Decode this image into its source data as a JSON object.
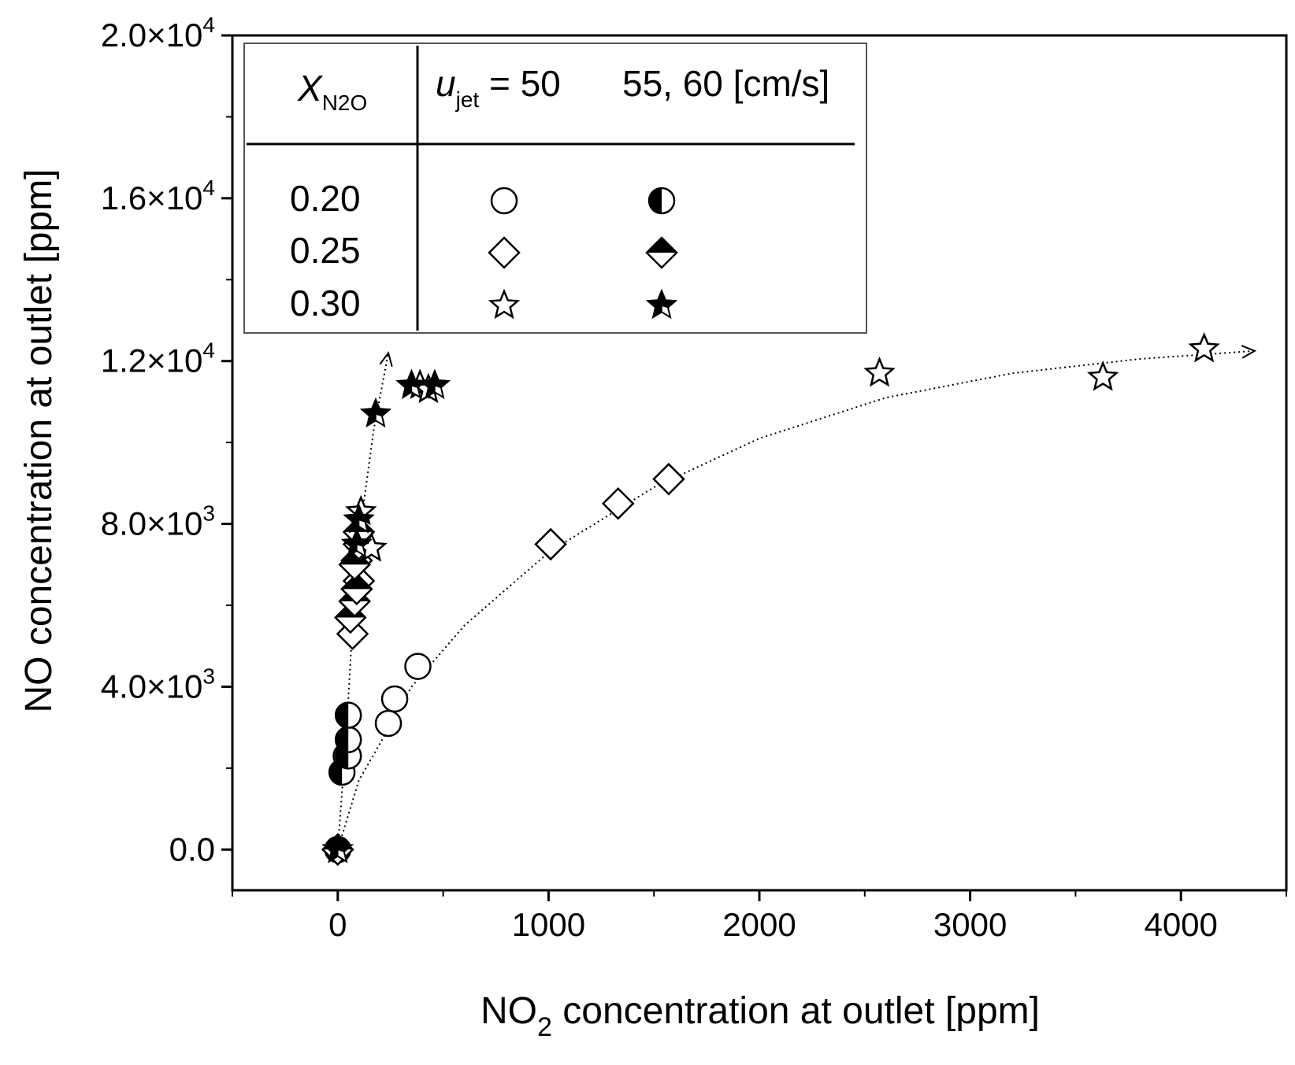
{
  "chart_data": {
    "type": "scatter",
    "title": "",
    "xlabel": {
      "main": "NO",
      "sub": "2",
      "rest": " concentration at outlet [ppm]"
    },
    "ylabel": "NO concentration at outlet [ppm]",
    "xlim": [
      -500,
      4500
    ],
    "ylim": [
      -1000,
      20000
    ],
    "x_ticks": [
      0,
      1000,
      2000,
      3000,
      4000
    ],
    "x_tick_labels": [
      "0",
      "1000",
      "2000",
      "3000",
      "4000"
    ],
    "y_ticks": [
      0,
      4000,
      8000,
      12000,
      16000,
      20000
    ],
    "y_tick_labels": [
      {
        "mantissa": "0.0",
        "exp": ""
      },
      {
        "mantissa": "4.0×10",
        "exp": "3"
      },
      {
        "mantissa": "8.0×10",
        "exp": "3"
      },
      {
        "mantissa": "1.2×10",
        "exp": "4"
      },
      {
        "mantissa": "1.6×10",
        "exp": "4"
      },
      {
        "mantissa": "2.0×10",
        "exp": "4"
      }
    ],
    "legend": {
      "position": "top-left",
      "header_x": {
        "main": "X",
        "sub": "N2O"
      },
      "header_u": {
        "main": "u",
        "sub": "jet",
        "rest": " = 50"
      },
      "header_u2": "55, 60  [cm/s]",
      "rows": [
        {
          "label": "0.20",
          "open": "circle",
          "filled": "circle-half"
        },
        {
          "label": "0.25",
          "open": "diamond",
          "filled": "diamond-half"
        },
        {
          "label": "0.30",
          "open": "star",
          "filled": "star-half"
        }
      ]
    },
    "series": [
      {
        "name": "X=0.20, u_jet=50",
        "marker": "circle",
        "fill": "open",
        "points": [
          [
            0,
            0
          ],
          [
            40,
            2300
          ],
          [
            240,
            3100
          ],
          [
            270,
            3700
          ],
          [
            380,
            4500
          ]
        ]
      },
      {
        "name": "X=0.20, u_jet=55,60",
        "marker": "circle",
        "fill": "half",
        "points": [
          [
            0,
            0
          ],
          [
            20,
            1900
          ],
          [
            50,
            2300
          ],
          [
            50,
            2700
          ],
          [
            50,
            3300
          ]
        ]
      },
      {
        "name": "X=0.25, u_jet=50",
        "marker": "diamond",
        "fill": "open",
        "points": [
          [
            0,
            0
          ],
          [
            1010,
            7500
          ],
          [
            1330,
            8500
          ],
          [
            1570,
            9100
          ],
          [
            70,
            5300
          ],
          [
            100,
            6600
          ],
          [
            90,
            7100
          ]
        ]
      },
      {
        "name": "X=0.25, u_jet=55,60",
        "marker": "diamond",
        "fill": "half",
        "points": [
          [
            0,
            0
          ],
          [
            60,
            5700
          ],
          [
            80,
            6100
          ],
          [
            90,
            6400
          ],
          [
            80,
            7000
          ],
          [
            100,
            7500
          ],
          [
            100,
            7800
          ]
        ]
      },
      {
        "name": "X=0.30, u_jet=50",
        "marker": "star",
        "fill": "open",
        "points": [
          [
            0,
            0
          ],
          [
            2570,
            11700
          ],
          [
            3630,
            11600
          ],
          [
            4110,
            12300
          ],
          [
            160,
            7400
          ],
          [
            110,
            8300
          ],
          [
            390,
            11400
          ],
          [
            430,
            11300
          ]
        ]
      },
      {
        "name": "X=0.30, u_jet=55,60",
        "marker": "star",
        "fill": "half",
        "points": [
          [
            0,
            0
          ],
          [
            180,
            10700
          ],
          [
            350,
            11400
          ],
          [
            460,
            11400
          ],
          [
            100,
            8100
          ],
          [
            90,
            7500
          ]
        ]
      }
    ],
    "trend_curves": [
      {
        "name": "u_jet=50 trend",
        "arrow": true,
        "points": [
          [
            0,
            0
          ],
          [
            100,
            1700
          ],
          [
            200,
            2600
          ],
          [
            350,
            4000
          ],
          [
            600,
            5500
          ],
          [
            1000,
            7300
          ],
          [
            1500,
            8900
          ],
          [
            2000,
            10100
          ],
          [
            2600,
            11100
          ],
          [
            3200,
            11700
          ],
          [
            3800,
            12050
          ],
          [
            4350,
            12250
          ]
        ]
      },
      {
        "name": "u_jet=55,60 trend",
        "arrow": true,
        "points": [
          [
            0,
            0
          ],
          [
            40,
            2800
          ],
          [
            70,
            5500
          ],
          [
            110,
            8000
          ],
          [
            170,
            10300
          ],
          [
            240,
            12200
          ]
        ]
      }
    ]
  }
}
